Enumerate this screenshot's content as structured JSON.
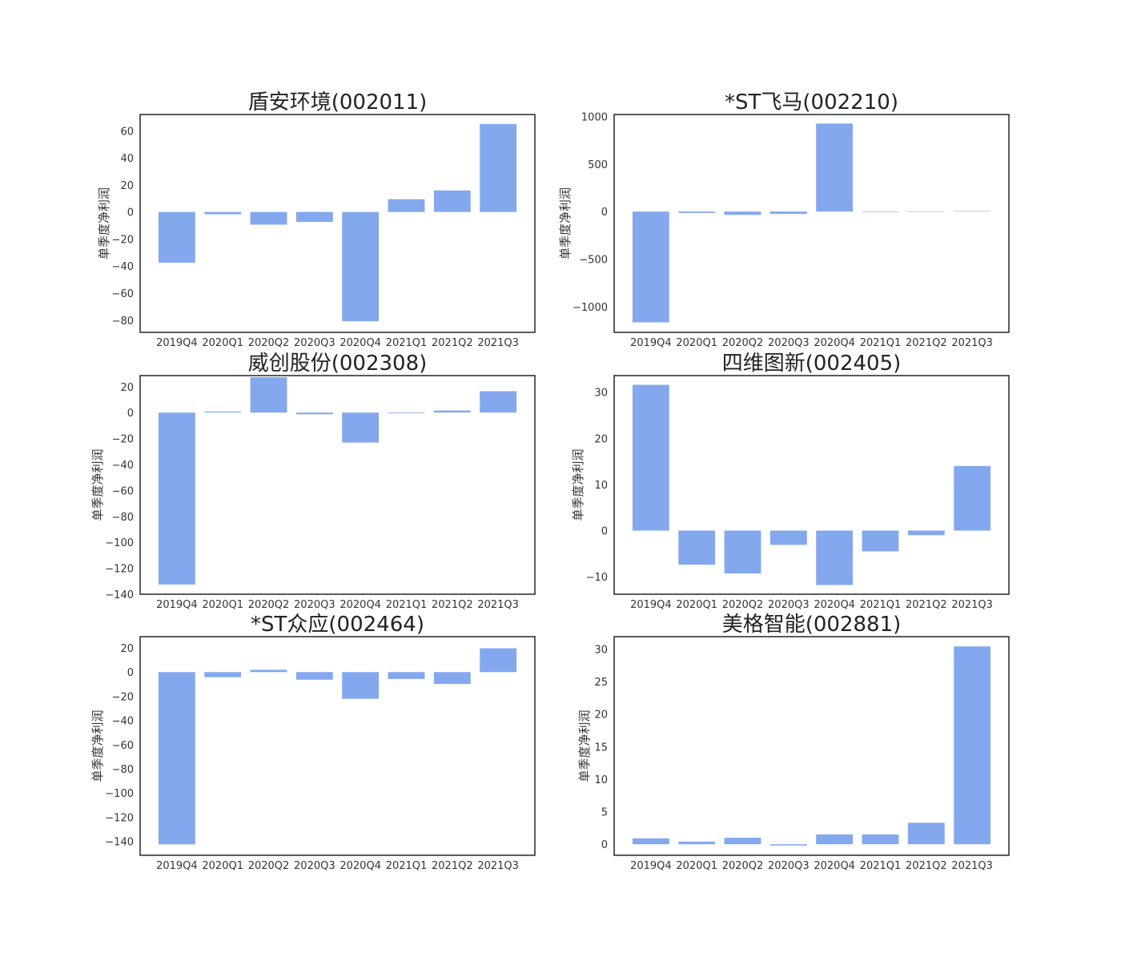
{
  "bar_color": "#84a8ee",
  "chart_data": [
    {
      "type": "bar",
      "title": "盾安环境(002011)",
      "xlabel": "",
      "ylabel": "单季度净利润",
      "categories": [
        "2019Q4",
        "2020Q1",
        "2020Q2",
        "2020Q3",
        "2020Q4",
        "2021Q1",
        "2021Q2",
        "2021Q3"
      ],
      "values": [
        -37.5,
        -1.7,
        -9.4,
        -7.4,
        -80.8,
        9.4,
        15.9,
        65.0
      ],
      "ylim": [
        -89,
        72
      ],
      "yticks": [
        -80,
        -60,
        -40,
        -20,
        0,
        20,
        40,
        60
      ]
    },
    {
      "type": "bar",
      "title": "*ST飞马(002210)",
      "xlabel": "",
      "ylabel": "单季度净利润",
      "categories": [
        "2019Q4",
        "2020Q1",
        "2020Q2",
        "2020Q3",
        "2020Q4",
        "2021Q1",
        "2021Q2",
        "2021Q3"
      ],
      "values": [
        -1165,
        -15,
        -35,
        -25,
        925,
        -2,
        2,
        5
      ],
      "ylim": [
        -1270,
        1020
      ],
      "yticks": [
        -1000,
        -500,
        0,
        500,
        1000
      ]
    },
    {
      "type": "bar",
      "title": "威创股份(002308)",
      "xlabel": "",
      "ylabel": "单季度净利润",
      "categories": [
        "2019Q4",
        "2020Q1",
        "2020Q2",
        "2020Q3",
        "2020Q4",
        "2021Q1",
        "2021Q2",
        "2021Q3"
      ],
      "values": [
        -132.5,
        0.8,
        27.2,
        -1.3,
        -23.1,
        -0.6,
        1.6,
        16.5
      ],
      "ylim": [
        -140,
        28.5
      ],
      "yticks": [
        -140,
        -120,
        -100,
        -80,
        -60,
        -40,
        -20,
        0,
        20
      ]
    },
    {
      "type": "bar",
      "title": "四维图新(002405)",
      "xlabel": "",
      "ylabel": "单季度净利润",
      "categories": [
        "2019Q4",
        "2020Q1",
        "2020Q2",
        "2020Q3",
        "2020Q4",
        "2021Q1",
        "2021Q2",
        "2021Q3"
      ],
      "values": [
        31.6,
        -7.4,
        -9.3,
        -3.1,
        -11.8,
        -4.5,
        -1.0,
        14.0
      ],
      "ylim": [
        -13.8,
        33.6
      ],
      "yticks": [
        -10,
        0,
        10,
        20,
        30
      ]
    },
    {
      "type": "bar",
      "title": "*ST众应(002464)",
      "xlabel": "",
      "ylabel": "单季度净利润",
      "categories": [
        "2019Q4",
        "2020Q1",
        "2020Q2",
        "2020Q3",
        "2020Q4",
        "2021Q1",
        "2021Q2",
        "2021Q3"
      ],
      "values": [
        -142.5,
        -4.2,
        1.9,
        -6.3,
        -22.1,
        -5.7,
        -9.8,
        19.7
      ],
      "ylim": [
        -151.5,
        29.3
      ],
      "yticks": [
        -140,
        -120,
        -100,
        -80,
        -60,
        -40,
        -20,
        0,
        20
      ]
    },
    {
      "type": "bar",
      "title": "美格智能(002881)",
      "xlabel": "",
      "ylabel": "单季度净利润",
      "categories": [
        "2019Q4",
        "2020Q1",
        "2020Q2",
        "2020Q3",
        "2020Q4",
        "2021Q1",
        "2021Q2",
        "2021Q3"
      ],
      "values": [
        0.9,
        0.4,
        1.0,
        -0.2,
        1.5,
        1.5,
        3.3,
        30.4
      ],
      "ylim": [
        -1.7,
        31.9
      ],
      "yticks": [
        0,
        5,
        10,
        15,
        20,
        25,
        30
      ]
    }
  ]
}
